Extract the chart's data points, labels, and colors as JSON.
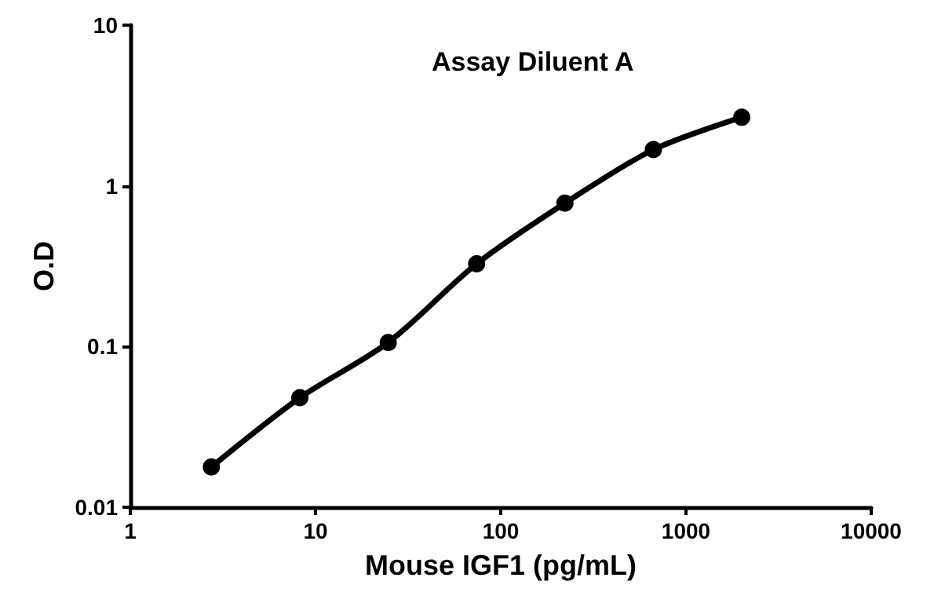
{
  "chart_data": {
    "type": "line",
    "title": "Assay Diluent A",
    "xlabel": "Mouse IGF1 (pg/mL)",
    "ylabel": "O.D",
    "x": [
      2.74,
      8.23,
      24.7,
      74.1,
      222,
      667,
      2000
    ],
    "series": [
      {
        "color": "#000000",
        "values": [
          0.0178,
          0.048,
          0.106,
          0.327,
          0.78,
          1.68,
          2.67
        ]
      }
    ],
    "xlim": [
      1,
      10000
    ],
    "xticks": [
      1,
      10,
      100,
      1000,
      10000
    ],
    "ylim": [
      0.01,
      10
    ],
    "yticks": [
      0.01,
      0.1,
      1,
      10
    ],
    "log": "xy",
    "grid": false,
    "marker": "circle",
    "line_style": "solid"
  }
}
